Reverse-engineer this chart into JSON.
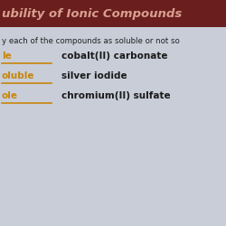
{
  "title": "ubility of Ionic Compounds",
  "subtitle": "y each of the compounds as soluble or not so",
  "header_bg": "#6B1E1E",
  "header_text_color": "#D8A090",
  "body_bg": "#C8CDD8",
  "label_color": "#C8860A",
  "underline_color": "#C8860A",
  "compound_color": "#1A1A1A",
  "subtitle_color": "#222222",
  "rows": [
    {
      "label": "le",
      "compound": "cobalt(II) carbonate"
    },
    {
      "label": "oluble",
      "compound": "silver iodide"
    },
    {
      "label": "ole",
      "compound": "chromium(II) sulfate"
    }
  ],
  "figsize": [
    2.5,
    2.5
  ],
  "dpi": 100
}
